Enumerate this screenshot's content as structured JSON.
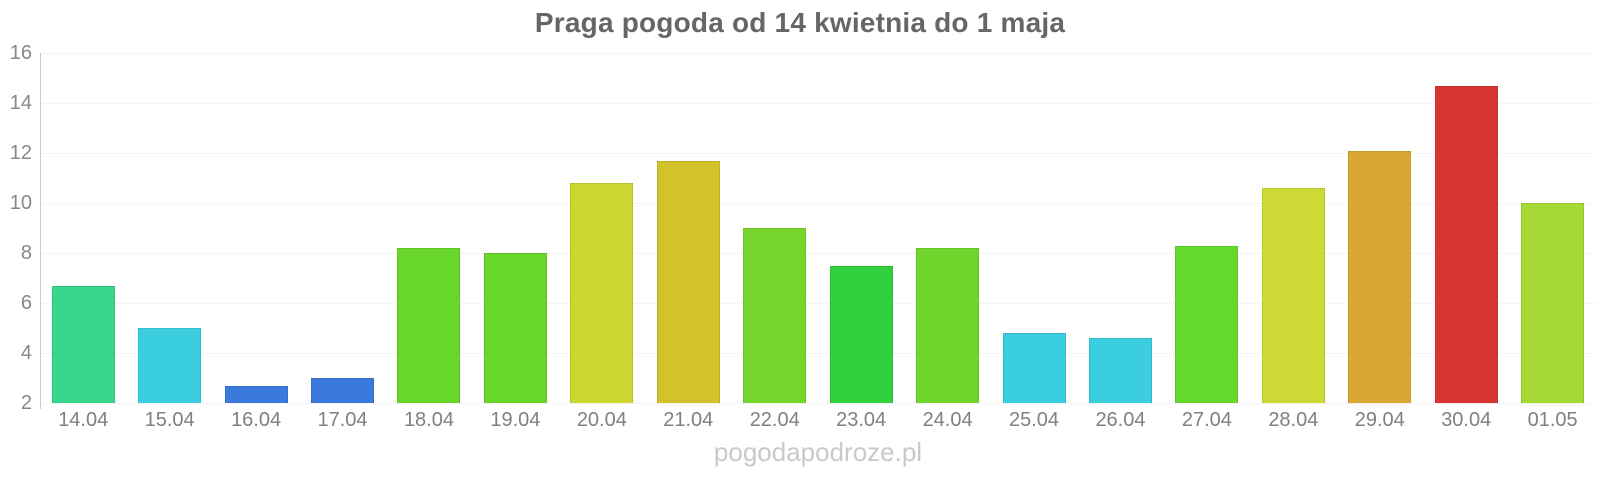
{
  "watermark": "pogodapodroze.pl",
  "chart_data": {
    "type": "bar",
    "title": "Praga pogoda od 14 kwietnia do 1 maja",
    "xlabel": "",
    "ylabel": "",
    "ylim": [
      2,
      16
    ],
    "yticks": [
      2,
      4,
      6,
      8,
      10,
      12,
      14,
      16
    ],
    "grid": true,
    "legend": false,
    "categories": [
      "14.04",
      "15.04",
      "16.04",
      "17.04",
      "18.04",
      "19.04",
      "20.04",
      "21.04",
      "22.04",
      "23.04",
      "24.04",
      "25.04",
      "26.04",
      "27.04",
      "28.04",
      "29.04",
      "30.04",
      "01.05"
    ],
    "values": [
      6.7,
      5.0,
      2.7,
      3.0,
      8.2,
      8.0,
      10.8,
      11.7,
      9.0,
      7.5,
      8.2,
      4.8,
      4.6,
      8.3,
      10.6,
      12.1,
      14.7,
      10.0
    ],
    "bar_colors": [
      "#38d68b",
      "#3acede",
      "#3a7add",
      "#3a7add",
      "#69d62c",
      "#69d62c",
      "#cdd52f",
      "#d4c22b",
      "#77d52e",
      "#30d13c",
      "#70d62e",
      "#3acede",
      "#3acede",
      "#66d92e",
      "#cdd934",
      "#d9a834",
      "#d93434",
      "#a6d933"
    ]
  },
  "colors": {
    "title": "#666666",
    "axis_label": "#888888",
    "axis_line": "#c9c9c9",
    "gridline": "#e9e9e9",
    "watermark": "#c9c9c9",
    "background": "#ffffff"
  }
}
